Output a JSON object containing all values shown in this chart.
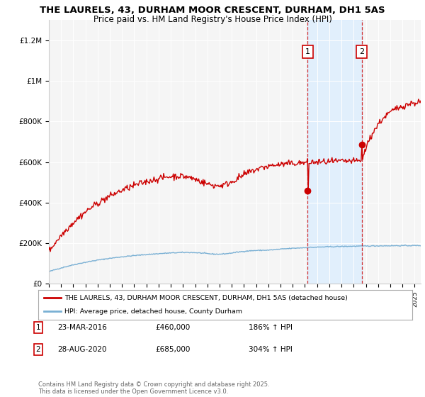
{
  "title": "THE LAURELS, 43, DURHAM MOOR CRESCENT, DURHAM, DH1 5AS",
  "subtitle": "Price paid vs. HM Land Registry's House Price Index (HPI)",
  "title_fontsize": 9.5,
  "subtitle_fontsize": 8.5,
  "background_color": "#ffffff",
  "plot_bg_color": "#f5f5f5",
  "red_line_color": "#cc0000",
  "blue_line_color": "#7ab0d4",
  "shade_color": "#ddeeff",
  "dashed_line_color": "#cc0000",
  "ylim": [
    0,
    1300000
  ],
  "yticks": [
    0,
    200000,
    400000,
    600000,
    800000,
    1000000,
    1200000
  ],
  "ytick_labels": [
    "£0",
    "£200K",
    "£400K",
    "£600K",
    "£800K",
    "£1M",
    "£1.2M"
  ],
  "sale1_x": 2016.22,
  "sale1_y": 460000,
  "sale1_label": "1",
  "sale2_x": 2020.65,
  "sale2_y": 685000,
  "sale2_label": "2",
  "legend_red_label": "THE LAURELS, 43, DURHAM MOOR CRESCENT, DURHAM, DH1 5AS (detached house)",
  "legend_blue_label": "HPI: Average price, detached house, County Durham",
  "annotation1_date": "23-MAR-2016",
  "annotation1_price": "£460,000",
  "annotation1_hpi": "186% ↑ HPI",
  "annotation2_date": "28-AUG-2020",
  "annotation2_price": "£685,000",
  "annotation2_hpi": "304% ↑ HPI",
  "footer": "Contains HM Land Registry data © Crown copyright and database right 2025.\nThis data is licensed under the Open Government Licence v3.0.",
  "xmin": 1995,
  "xmax": 2025.5
}
